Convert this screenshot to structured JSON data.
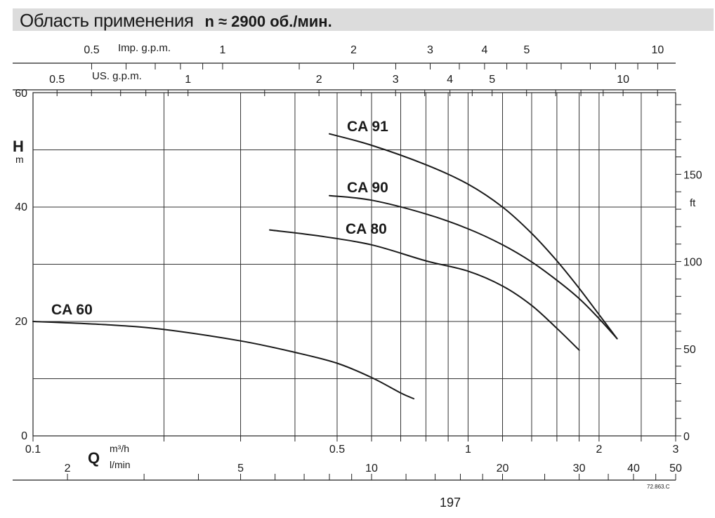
{
  "header": {
    "title": "Область применения",
    "speed": "n ≈ 2900 об./мин."
  },
  "page_number": "197",
  "figure_code": "72.863.C",
  "chart_data": {
    "type": "line",
    "title": "Область применения",
    "subtitle": "n ≈ 2900 об./мин.",
    "x_scale": "log",
    "xlim": [
      0.1,
      3
    ],
    "x_ticks": [
      {
        "v": 0.1,
        "label": "0.1"
      },
      {
        "v": 0.2,
        "label": ""
      },
      {
        "v": 0.3,
        "label": ""
      },
      {
        "v": 0.4,
        "label": ""
      },
      {
        "v": 0.5,
        "label": "0.5"
      },
      {
        "v": 0.6,
        "label": ""
      },
      {
        "v": 0.7,
        "label": ""
      },
      {
        "v": 0.8,
        "label": ""
      },
      {
        "v": 0.9,
        "label": ""
      },
      {
        "v": 1,
        "label": "1"
      },
      {
        "v": 1.2,
        "label": ""
      },
      {
        "v": 1.4,
        "label": ""
      },
      {
        "v": 1.6,
        "label": ""
      },
      {
        "v": 1.8,
        "label": ""
      },
      {
        "v": 2,
        "label": "2"
      },
      {
        "v": 2.5,
        "label": ""
      },
      {
        "v": 3,
        "label": "3"
      }
    ],
    "ylim": [
      0,
      60
    ],
    "y_ticks": [
      0,
      20,
      40,
      60
    ],
    "y_grid": [
      10,
      20,
      30,
      40,
      50
    ],
    "ylabel": "H",
    "ylabel_unit": "m",
    "xlabel": "Q",
    "xlabel_unit_1": "m³/h",
    "xlabel_unit_2": "l/min",
    "grid": true,
    "axes": {
      "imp_gpm": {
        "label": "Imp. g.p.m.",
        "ticks": [
          {
            "v": 0.5,
            "label": "0.5"
          },
          {
            "v": 0.6,
            "label": ""
          },
          {
            "v": 0.7,
            "label": ""
          },
          {
            "v": 0.8,
            "label": ""
          },
          {
            "v": 0.9,
            "label": ""
          },
          {
            "v": 1,
            "label": "1"
          },
          {
            "v": 1.5,
            "label": ""
          },
          {
            "v": 2,
            "label": "2"
          },
          {
            "v": 2.5,
            "label": ""
          },
          {
            "v": 3,
            "label": "3"
          },
          {
            "v": 3.5,
            "label": ""
          },
          {
            "v": 4,
            "label": "4"
          },
          {
            "v": 4.5,
            "label": ""
          },
          {
            "v": 5,
            "label": "5"
          },
          {
            "v": 6,
            "label": ""
          },
          {
            "v": 7,
            "label": ""
          },
          {
            "v": 8,
            "label": ""
          },
          {
            "v": 9,
            "label": ""
          },
          {
            "v": 10,
            "label": "10"
          }
        ]
      },
      "us_gpm": {
        "label": "US. g.p.m.",
        "ticks": [
          {
            "v": 0.5,
            "label": "0.5"
          },
          {
            "v": 0.6,
            "label": ""
          },
          {
            "v": 0.7,
            "label": ""
          },
          {
            "v": 0.8,
            "label": ""
          },
          {
            "v": 0.9,
            "label": ""
          },
          {
            "v": 1,
            "label": "1"
          },
          {
            "v": 1.5,
            "label": ""
          },
          {
            "v": 2,
            "label": "2"
          },
          {
            "v": 2.5,
            "label": ""
          },
          {
            "v": 3,
            "label": "3"
          },
          {
            "v": 3.5,
            "label": ""
          },
          {
            "v": 4,
            "label": "4"
          },
          {
            "v": 4.5,
            "label": ""
          },
          {
            "v": 5,
            "label": "5"
          },
          {
            "v": 6,
            "label": ""
          },
          {
            "v": 7,
            "label": ""
          },
          {
            "v": 8,
            "label": ""
          },
          {
            "v": 9,
            "label": ""
          },
          {
            "v": 10,
            "label": "10"
          },
          {
            "v": 12,
            "label": ""
          }
        ]
      },
      "lmin": {
        "ticks": [
          {
            "v": 2,
            "label": "2"
          },
          {
            "v": 3,
            "label": ""
          },
          {
            "v": 4,
            "label": ""
          },
          {
            "v": 5,
            "label": "5"
          },
          {
            "v": 6,
            "label": ""
          },
          {
            "v": 7,
            "label": ""
          },
          {
            "v": 8,
            "label": ""
          },
          {
            "v": 9,
            "label": ""
          },
          {
            "v": 10,
            "label": "10"
          },
          {
            "v": 12,
            "label": ""
          },
          {
            "v": 14,
            "label": ""
          },
          {
            "v": 16,
            "label": ""
          },
          {
            "v": 18,
            "label": ""
          },
          {
            "v": 20,
            "label": "20"
          },
          {
            "v": 25,
            "label": ""
          },
          {
            "v": 30,
            "label": "30"
          },
          {
            "v": 35,
            "label": ""
          },
          {
            "v": 40,
            "label": "40"
          },
          {
            "v": 45,
            "label": ""
          },
          {
            "v": 50,
            "label": "50"
          }
        ]
      },
      "ft": {
        "label": "ft",
        "ticks": [
          {
            "v": 0,
            "label": "0"
          },
          {
            "v": 10,
            "label": ""
          },
          {
            "v": 20,
            "label": ""
          },
          {
            "v": 30,
            "label": ""
          },
          {
            "v": 40,
            "label": ""
          },
          {
            "v": 50,
            "label": "50"
          },
          {
            "v": 60,
            "label": ""
          },
          {
            "v": 70,
            "label": ""
          },
          {
            "v": 80,
            "label": ""
          },
          {
            "v": 90,
            "label": ""
          },
          {
            "v": 100,
            "label": "100"
          },
          {
            "v": 110,
            "label": ""
          },
          {
            "v": 120,
            "label": ""
          },
          {
            "v": 130,
            "label": ""
          },
          {
            "v": 140,
            "label": ""
          },
          {
            "v": 150,
            "label": "150"
          },
          {
            "v": 160,
            "label": ""
          },
          {
            "v": 170,
            "label": ""
          },
          {
            "v": 180,
            "label": ""
          },
          {
            "v": 190,
            "label": ""
          }
        ]
      }
    },
    "series": [
      {
        "name": "CA 60",
        "points": [
          [
            0.1,
            20
          ],
          [
            0.15,
            19.4
          ],
          [
            0.2,
            18.6
          ],
          [
            0.3,
            16.6
          ],
          [
            0.4,
            14.6
          ],
          [
            0.5,
            12.7
          ],
          [
            0.6,
            10.2
          ],
          [
            0.7,
            7.5
          ],
          [
            0.75,
            6.5
          ]
        ]
      },
      {
        "name": "CA 80",
        "points": [
          [
            0.35,
            36
          ],
          [
            0.45,
            35
          ],
          [
            0.6,
            33.4
          ],
          [
            0.8,
            30.6
          ],
          [
            1.0,
            28.8
          ],
          [
            1.2,
            26.2
          ],
          [
            1.4,
            22.8
          ],
          [
            1.6,
            18.8
          ],
          [
            1.8,
            15
          ]
        ]
      },
      {
        "name": "CA 90",
        "points": [
          [
            0.48,
            42
          ],
          [
            0.6,
            41.2
          ],
          [
            0.8,
            38.8
          ],
          [
            1.0,
            36.2
          ],
          [
            1.2,
            33.4
          ],
          [
            1.4,
            30.4
          ],
          [
            1.6,
            27.2
          ],
          [
            1.8,
            24
          ],
          [
            2.0,
            20.5
          ],
          [
            2.2,
            17
          ]
        ]
      },
      {
        "name": "CA 91",
        "points": [
          [
            0.48,
            52.8
          ],
          [
            0.6,
            50.8
          ],
          [
            0.8,
            47.4
          ],
          [
            1.0,
            44
          ],
          [
            1.2,
            40
          ],
          [
            1.4,
            35.4
          ],
          [
            1.6,
            30.6
          ],
          [
            1.8,
            25.8
          ],
          [
            2.0,
            21.2
          ],
          [
            2.2,
            17
          ]
        ]
      }
    ]
  }
}
